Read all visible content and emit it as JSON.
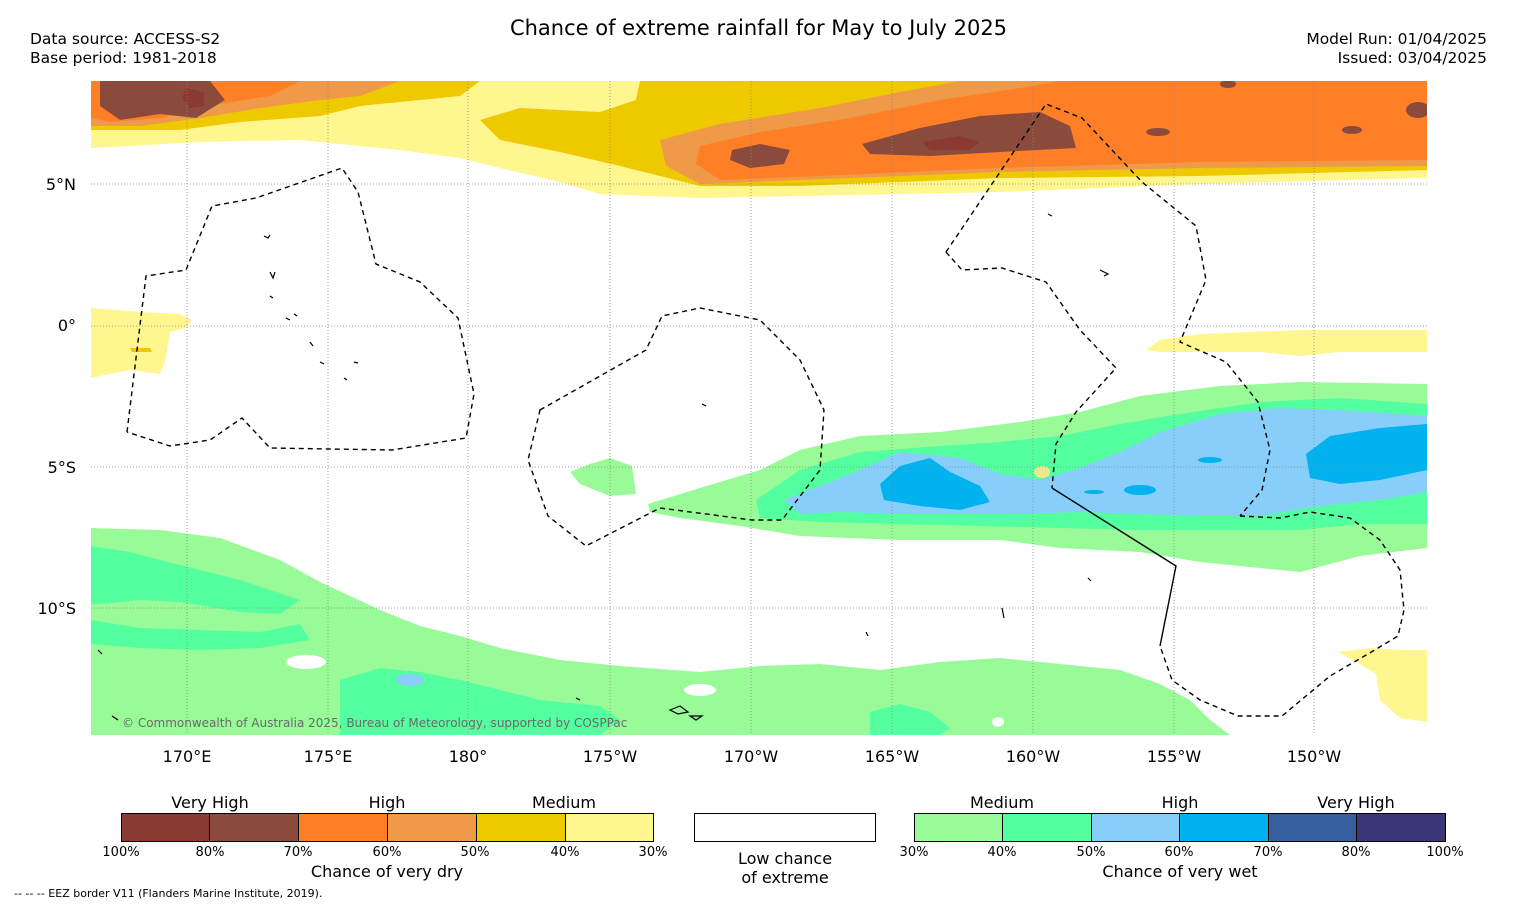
{
  "title": "Chance of extreme rainfall for May to July 2025",
  "header_left": [
    "Data source: ACCESS-S2",
    "Base period: 1981-2018"
  ],
  "header_right": [
    "Model Run: 01/04/2025",
    "Issued: 03/04/2025"
  ],
  "latitude_labels": [
    "5°N",
    "0°",
    "5°S",
    "10°S"
  ],
  "longitude_labels": [
    "170°E",
    "175°E",
    "180°",
    "175°W",
    "170°W",
    "165°W",
    "160°W",
    "155°W",
    "150°W"
  ],
  "copyright": "© Commonwealth of Australia 2025, Bureau of Meteorology, supported by COSPPac",
  "eez_note": "--  --  -- EEZ border V11 (Flanders Marine Institute, 2019).",
  "legend_dry": {
    "labels": [
      "Very High",
      "High",
      "Medium"
    ],
    "ticks": [
      "100%",
      "80%",
      "70%",
      "60%",
      "50%",
      "40%",
      "30%"
    ],
    "colors": [
      "#8b3a32",
      "#8a4b3c",
      "#ff7f27",
      "#ee9a49",
      "#eec900",
      "#fff68f"
    ],
    "caption": "Chance of very dry"
  },
  "legend_low": {
    "line1": "Low chance",
    "line2": "of extreme",
    "color": "#ffffff"
  },
  "legend_wet": {
    "labels": [
      "Medium",
      "High",
      "Very High"
    ],
    "ticks": [
      "30%",
      "40%",
      "50%",
      "60%",
      "70%",
      "80%",
      "100%"
    ],
    "colors": [
      "#98fb98",
      "#54ff9f",
      "#87cefa",
      "#00b2ee",
      "#36609d",
      "#3c3877"
    ],
    "caption": "Chance of very wet"
  }
}
